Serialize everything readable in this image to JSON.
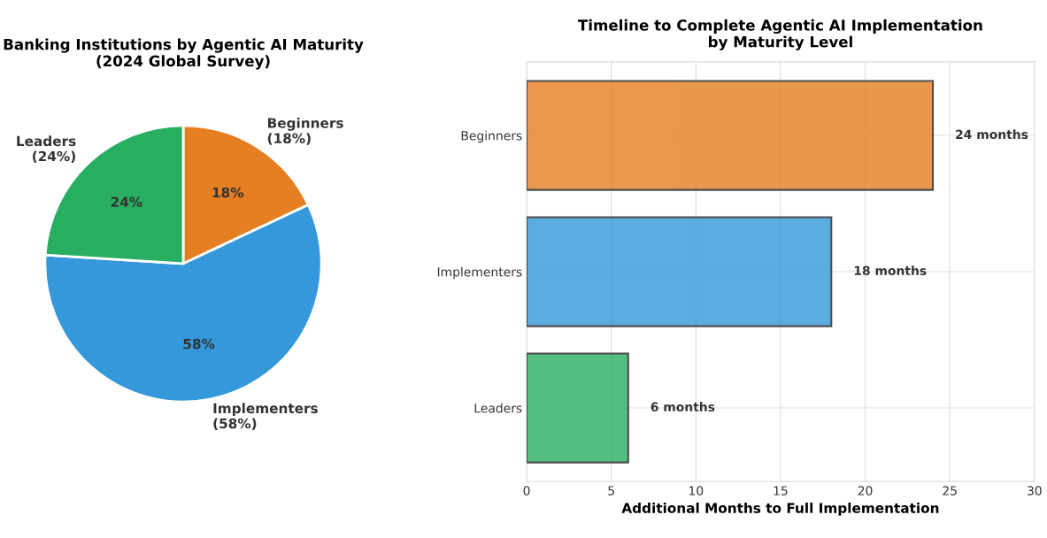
{
  "chart_data": [
    {
      "type": "pie",
      "title": "Banking Institutions by Agentic AI Maturity\n(2024 Global Survey)",
      "categories": [
        "Beginners\n(18%)",
        "Implementers\n(58%)",
        "Leaders\n(24%)"
      ],
      "values": [
        18,
        58,
        24
      ],
      "colors": [
        "#e67e22",
        "#3498db",
        "#27ae60"
      ],
      "value_labels": [
        "18%",
        "58%",
        "24%"
      ]
    },
    {
      "type": "bar",
      "orientation": "horizontal",
      "title": "Timeline to Complete Agentic AI Implementation\nby Maturity Level",
      "xlabel": "Additional Months to Full Implementation",
      "categories": [
        "Beginners",
        "Implementers",
        "Leaders"
      ],
      "values": [
        24,
        18,
        6
      ],
      "colors": [
        "#e67e22",
        "#3498db",
        "#27ae60"
      ],
      "value_labels": [
        "24 months",
        "18 months",
        "6 months"
      ],
      "xlim": [
        0,
        30
      ],
      "xticks": [
        0,
        5,
        10,
        15,
        20,
        25,
        30
      ],
      "grid": true
    }
  ]
}
